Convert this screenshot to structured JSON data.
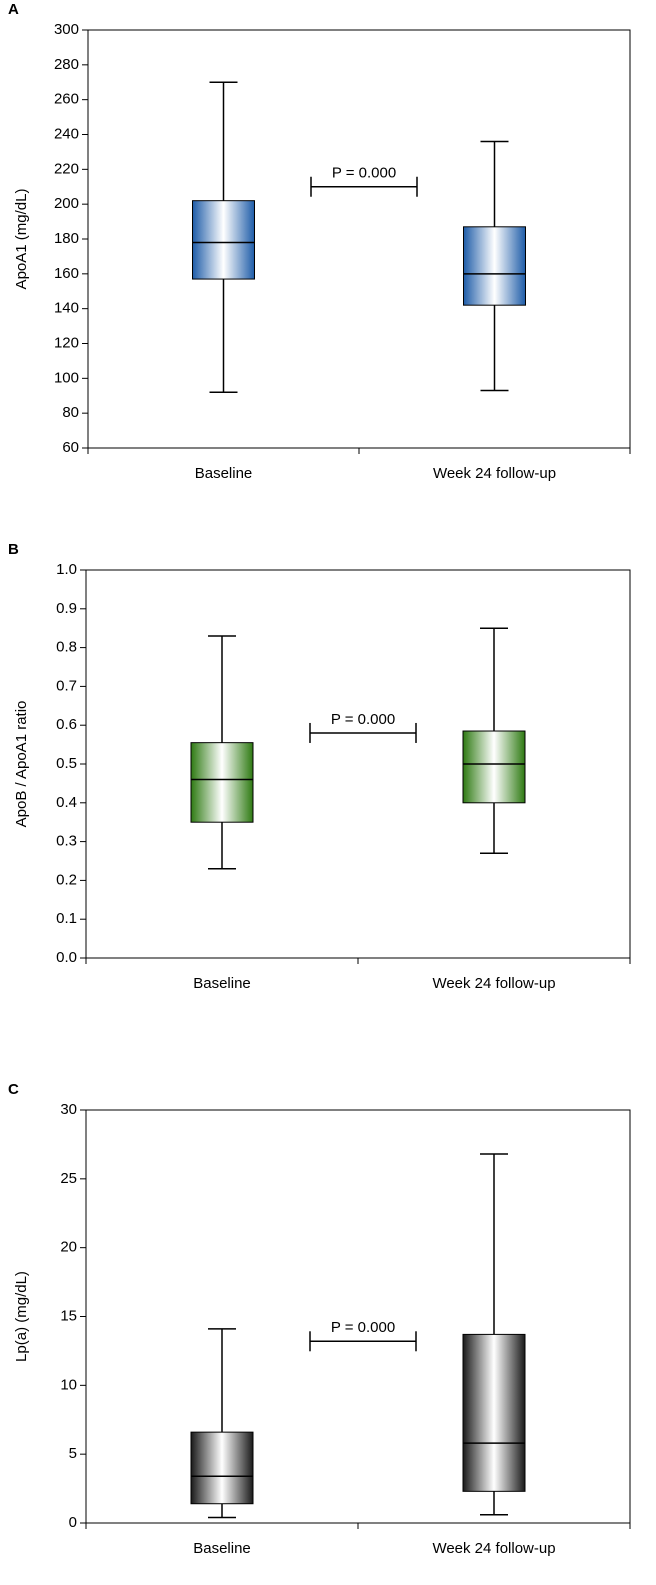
{
  "chart_data": [
    {
      "type": "box",
      "panel": "A",
      "y_label": "ApoA1 (mg/dL)",
      "categories": [
        "Baseline",
        "Week 24 follow-up"
      ],
      "boxes": [
        [
          92,
          157,
          178,
          202,
          270
        ],
        [
          93,
          142,
          160,
          187,
          236
        ]
      ],
      "color": "#1e5ca8",
      "ylim": [
        60,
        300
      ],
      "yticks": [
        60,
        80,
        100,
        120,
        140,
        160,
        180,
        200,
        220,
        240,
        260,
        280,
        300
      ],
      "annotation": {
        "text": "P = 0.000",
        "y": 210
      }
    },
    {
      "type": "box",
      "panel": "B",
      "y_label": "ApoB / ApoA1 ratio",
      "categories": [
        "Baseline",
        "Week 24 follow-up"
      ],
      "boxes": [
        [
          0.23,
          0.35,
          0.46,
          0.555,
          0.83
        ],
        [
          0.27,
          0.4,
          0.5,
          0.585,
          0.85
        ]
      ],
      "color": "#2e7a12",
      "ylim": [
        0,
        1
      ],
      "yticks": [
        {
          "value": 0,
          "label": "0.0"
        },
        0.1,
        0.2,
        0.3,
        0.4,
        0.5,
        0.6,
        0.7,
        0.8,
        0.9,
        {
          "value": 1,
          "label": "1.0"
        }
      ],
      "annotation": {
        "text": "P = 0.000",
        "y": 0.58
      }
    },
    {
      "type": "box",
      "panel": "C",
      "y_label": "Lp(a) (mg/dL)",
      "categories": [
        "Baseline",
        "Week 24 follow-up"
      ],
      "boxes": [
        [
          0.4,
          1.4,
          3.4,
          6.6,
          14.1
        ],
        [
          0.6,
          2.3,
          5.8,
          13.7,
          26.8
        ]
      ],
      "color": "#1a1a1a",
      "ylim": [
        0,
        30
      ],
      "yticks": [
        0,
        5,
        10,
        15,
        20,
        25,
        30
      ],
      "annotation": {
        "text": "P = 0.000",
        "y": 13.2
      }
    }
  ]
}
